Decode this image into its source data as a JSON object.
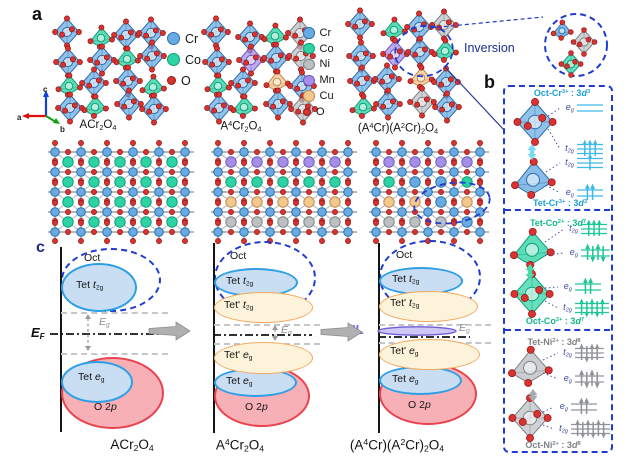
{
  "colors": {
    "Cr": "#66abe2",
    "CrD": "#2f6fae",
    "Co": "#2ed3a3",
    "CoD": "#0f9e7c",
    "Ni": "#bdc0c3",
    "NiD": "#7e8286",
    "Mn": "#a58ee8",
    "MnD": "#6f57bf",
    "Cu": "#f3c88e",
    "CuD": "#bf8a4e",
    "O": "#d93230",
    "OD": "#8f1a17",
    "dash": "#1f3bd0",
    "navy": "#1b2f8f",
    "bandBlue": "#c9def2",
    "bandBlueE": "#2e9fe6",
    "bandYel": "#fdf3da",
    "bandYelE": "#f2a85f",
    "bandRed": "#f7b0b6",
    "bandRedE": "#e8434f",
    "il": "#7b68ee",
    "ilFill": "#cfc8f7"
  },
  "panel_a": {
    "label": "a",
    "axes": {
      "a": "a",
      "b": "b",
      "c": "c"
    },
    "legend_small": [
      {
        "label": "Cr",
        "key": "Cr"
      },
      {
        "label": "Co",
        "key": "Co"
      },
      {
        "label": "O",
        "key": "O"
      }
    ],
    "legend_large": [
      {
        "label": "Cr",
        "key": "Cr"
      },
      {
        "label": "Co",
        "key": "Co"
      },
      {
        "label": "Ni",
        "key": "Ni"
      },
      {
        "label": "Mn",
        "key": "Mn"
      },
      {
        "label": "Cu",
        "key": "Cu"
      },
      {
        "label": "O",
        "key": "O"
      }
    ],
    "inversion_label": "Inversion",
    "structures": [
      {
        "formula": [
          {
            "t": "ACr"
          },
          {
            "s": "2"
          },
          {
            "t": "O"
          },
          {
            "s": "4"
          }
        ],
        "polyhedra": [
          "Cr",
          "Co",
          "Cr",
          "Cr",
          "Cr",
          "Cr",
          "Co",
          "Cr",
          "Co",
          "Cr",
          "Cr",
          "Co",
          "Cr",
          "Co",
          "Cr",
          "Cr"
        ]
      },
      {
        "formula": [
          {
            "t": "A"
          },
          {
            "u": "4"
          },
          {
            "t": "Cr"
          },
          {
            "s": "2"
          },
          {
            "t": "O"
          },
          {
            "s": "4"
          }
        ],
        "polyhedra": [
          "Cr",
          "Cr",
          "Co",
          "Ni",
          "Cr",
          "Mn",
          "Cr",
          "Ni",
          "Co",
          "Cr",
          "Cu",
          "Cr",
          "Cr",
          "Co",
          "Cr",
          "Ni"
        ]
      },
      {
        "formula": [
          {
            "t": "(A"
          },
          {
            "u": "4"
          },
          {
            "t": "Cr)(A"
          },
          {
            "u": "2"
          },
          {
            "t": "Cr)"
          },
          {
            "s": "2"
          },
          {
            "t": "O"
          },
          {
            "s": "4"
          }
        ],
        "polyhedra": [
          "Cr",
          "Co",
          "Cr",
          "Ni",
          "Cr",
          "Mn",
          "Cr",
          "Co",
          "Cr",
          "Cr",
          "Cu",
          "Cr",
          "Co",
          "Cr",
          "Ni",
          "Cr"
        ]
      }
    ],
    "inset": [
      {
        "shape": "tet",
        "key": "Cr"
      },
      {
        "shape": "oct",
        "key": "Ni"
      },
      {
        "shape": "oct",
        "key": "Co"
      }
    ]
  },
  "lattices": [
    {
      "a_rows": [
        [
          "Co",
          "Co",
          "Co",
          "Co",
          "Co"
        ],
        [
          "Co",
          "Co",
          "Co",
          "Co",
          "Co"
        ],
        [
          "Co",
          "Co",
          "Co",
          "Co",
          "Co"
        ],
        [
          "Co",
          "Co",
          "Co",
          "Co",
          "Co"
        ]
      ]
    },
    {
      "a_rows": [
        [
          "Mn",
          "Mn",
          "Mn",
          "Mn",
          "Mn"
        ],
        [
          "Co",
          "Co",
          "Co",
          "Co",
          "Co"
        ],
        [
          "Cu",
          "Cu",
          "Cu",
          "Cu",
          "Cu"
        ],
        [
          "Ni",
          "Ni",
          "Ni",
          "Ni",
          "Ni"
        ]
      ]
    },
    {
      "a_rows": [
        [
          "Mn",
          "Mn",
          "Mn",
          "Mn"
        ],
        [
          "Co",
          "Cr",
          "Cr",
          "Co"
        ],
        [
          "Cu",
          "Cu",
          "Cr",
          "Cu"
        ],
        [
          "Ni",
          "Ni",
          "Ni",
          "Cr"
        ]
      ]
    }
  ],
  "panel_b": {
    "label": "b",
    "orbitals": {
      "eg": [
        {
          "i": "e"
        },
        {
          "s": "g"
        }
      ],
      "t2g": [
        {
          "i": "t"
        },
        {
          "s": "2g"
        }
      ]
    },
    "sections": [
      {
        "tone": "cyan",
        "units": [
          {
            "title": [
              {
                "t": "Oct-Cr"
              },
              {
                "u": "3+"
              },
              {
                "t": " : 3"
              },
              {
                "i": "d"
              },
              {
                "u": "3"
              }
            ],
            "shape": "oct",
            "key": "Cr",
            "levels": [
              {
                "orb": "eg",
                "lines": 2,
                "electrons": []
              },
              {
                "orb": "t2g",
                "lines": 3,
                "electrons": [
                  1,
                  1,
                  1
                ]
              }
            ]
          },
          {
            "title": [
              {
                "t": "Tet-Cr"
              },
              {
                "u": "3+"
              },
              {
                "t": " : 3"
              },
              {
                "i": "d"
              },
              {
                "u": "3"
              }
            ],
            "shape": "tet",
            "key": "Cr",
            "levels": [
              {
                "orb": "t2g",
                "lines": 3,
                "electrons": [
                  1
                ]
              },
              {
                "orb": "eg",
                "lines": 2,
                "electrons": [
                  1,
                  1
                ]
              }
            ]
          }
        ]
      },
      {
        "tone": "green",
        "units": [
          {
            "title": [
              {
                "t": "Tet-Co"
              },
              {
                "u": "2+"
              },
              {
                "t": " : 3"
              },
              {
                "i": "d"
              },
              {
                "u": "7"
              }
            ],
            "shape": "tet",
            "key": "Co",
            "levels": [
              {
                "orb": "t2g",
                "lines": 3,
                "electrons": [
                  1,
                  1,
                  1
                ]
              },
              {
                "orb": "eg",
                "lines": 2,
                "electrons": [
                  1,
                  -1,
                  1,
                  -1
                ]
              }
            ]
          },
          {
            "title": [
              {
                "t": "Oct-Co"
              },
              {
                "u": "2+"
              },
              {
                "t": " : 3"
              },
              {
                "i": "d"
              },
              {
                "u": "7"
              }
            ],
            "shape": "oct",
            "key": "Co",
            "levels": [
              {
                "orb": "eg",
                "lines": 2,
                "electrons": [
                  1,
                  1
                ]
              },
              {
                "orb": "t2g",
                "lines": 3,
                "electrons": [
                  1,
                  -1,
                  1,
                  -1,
                  1
                ]
              }
            ]
          }
        ]
      },
      {
        "tone": "gray",
        "units": [
          {
            "title": [
              {
                "t": "Tet-Ni"
              },
              {
                "u": "2+"
              },
              {
                "t": " : 3"
              },
              {
                "i": "d"
              },
              {
                "u": "8"
              }
            ],
            "shape": "tet",
            "key": "Ni",
            "levels": [
              {
                "orb": "t2g",
                "lines": 3,
                "electrons": [
                  1,
                  -1,
                  1,
                  1
                ]
              },
              {
                "orb": "eg",
                "lines": 2,
                "electrons": [
                  1,
                  -1,
                  1,
                  -1
                ]
              }
            ]
          },
          {
            "title": [
              {
                "t": "Oct-Ni"
              },
              {
                "u": "2+"
              },
              {
                "t": " : 3"
              },
              {
                "i": "d"
              },
              {
                "u": "8"
              }
            ],
            "shape": "oct",
            "key": "Ni",
            "levels": [
              {
                "orb": "eg",
                "lines": 2,
                "electrons": [
                  1,
                  1
                ]
              },
              {
                "orb": "t2g",
                "lines": 3,
                "electrons": [
                  1,
                  -1,
                  1,
                  -1,
                  1,
                  -1
                ]
              }
            ]
          }
        ]
      }
    ]
  },
  "panel_c": {
    "label": "c",
    "ef": [
      {
        "i": "E"
      },
      {
        "s": "F"
      }
    ],
    "eg": [
      {
        "i": "E"
      },
      {
        "s": "g"
      }
    ],
    "il": "IL",
    "bands": {
      "oct": [
        {
          "t": "Oct"
        }
      ],
      "tet_t2g": [
        {
          "t": "Tet "
        },
        {
          "i": "t"
        },
        {
          "s": "2g"
        }
      ],
      "tetp_t2g": [
        {
          "t": "Tet' "
        },
        {
          "i": "t"
        },
        {
          "s": "2g"
        }
      ],
      "tetp_eg": [
        {
          "t": "Tet' "
        },
        {
          "i": "e"
        },
        {
          "s": "g"
        }
      ],
      "tet_eg": [
        {
          "t": "Tet "
        },
        {
          "i": "e"
        },
        {
          "s": "g"
        }
      ],
      "o2p": [
        {
          "t": "O 2"
        },
        {
          "i": "p"
        }
      ]
    }
  }
}
